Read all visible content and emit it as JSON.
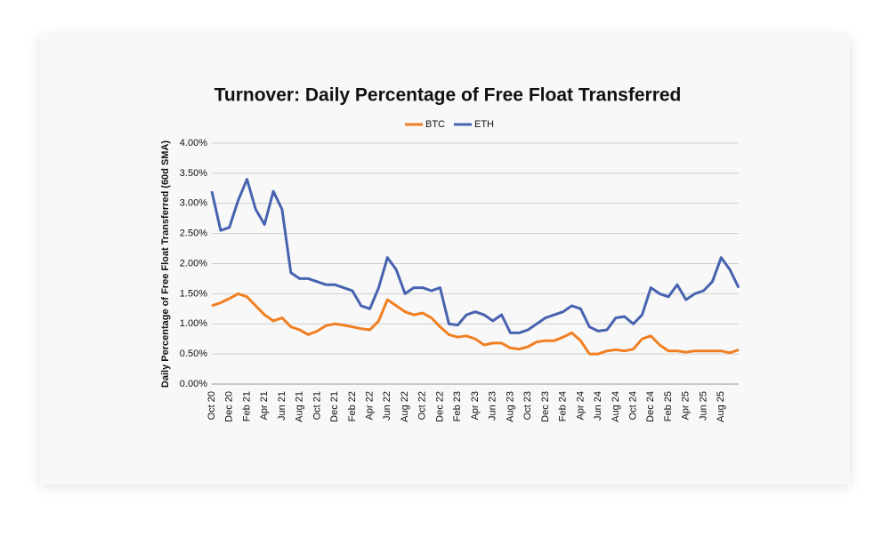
{
  "chart_data": {
    "type": "line",
    "title": "Turnover: Daily Percentage of Free Float Transferred",
    "y_label": "Daily Percentage of Free Float Transferred (60d SMA)",
    "categories": [
      "Oct 20",
      null,
      "Dec 20",
      null,
      "Feb 21",
      null,
      "Apr 21",
      null,
      "Jun 21",
      null,
      "Aug 21",
      null,
      "Oct 21",
      null,
      "Dec 21",
      null,
      "Feb 22",
      null,
      "Apr 22",
      null,
      "Jun 22",
      null,
      "Aug 22",
      null,
      "Oct 22",
      null,
      "Dec 22",
      null,
      "Feb 23",
      null,
      "Apr 23",
      null,
      "Jun 23",
      null,
      "Aug 23",
      null,
      "Oct 23",
      null,
      "Dec 23",
      null,
      "Feb 24",
      null,
      "Apr 24",
      null,
      "Jun 24",
      null,
      "Aug 24",
      null,
      "Oct 24",
      null,
      "Dec 24",
      null,
      "Feb 25",
      null,
      "Apr 25",
      null,
      "Jun 25",
      null,
      "Aug 25",
      null,
      null
    ],
    "series": [
      {
        "name": "BTC",
        "color": "#f07f22",
        "values": [
          1.3,
          1.35,
          1.42,
          1.5,
          1.45,
          1.3,
          1.15,
          1.05,
          1.1,
          0.95,
          0.9,
          0.82,
          0.88,
          0.97,
          1.0,
          0.98,
          0.95,
          0.92,
          0.9,
          1.05,
          1.4,
          1.3,
          1.2,
          1.15,
          1.18,
          1.1,
          0.95,
          0.82,
          0.78,
          0.8,
          0.75,
          0.65,
          0.68,
          0.68,
          0.6,
          0.58,
          0.62,
          0.7,
          0.72,
          0.72,
          0.78,
          0.85,
          0.72,
          0.5,
          0.5,
          0.55,
          0.57,
          0.55,
          0.58,
          0.75,
          0.8,
          0.65,
          0.55,
          0.55,
          0.53,
          0.55,
          0.55,
          0.55,
          0.55,
          0.52,
          0.57
        ]
      },
      {
        "name": "ETH",
        "color": "#4763b0",
        "values": [
          3.2,
          2.55,
          2.6,
          3.05,
          3.4,
          2.9,
          2.65,
          3.2,
          2.9,
          1.85,
          1.75,
          1.75,
          1.7,
          1.65,
          1.65,
          1.6,
          1.55,
          1.3,
          1.25,
          1.6,
          2.1,
          1.9,
          1.5,
          1.6,
          1.6,
          1.55,
          1.6,
          1.0,
          0.98,
          1.15,
          1.2,
          1.15,
          1.05,
          1.15,
          0.85,
          0.85,
          0.9,
          1.0,
          1.1,
          1.15,
          1.2,
          1.3,
          1.25,
          0.95,
          0.88,
          0.9,
          1.1,
          1.12,
          1.0,
          1.15,
          1.6,
          1.5,
          1.45,
          1.65,
          1.4,
          1.5,
          1.55,
          1.7,
          2.1,
          1.9,
          1.6
        ]
      }
    ],
    "ylim": [
      0,
      4
    ],
    "yticks": [
      {
        "value": 0,
        "label": "0.00%"
      },
      {
        "value": 0.5,
        "label": "0.50%"
      },
      {
        "value": 1,
        "label": "1.00%"
      },
      {
        "value": 1.5,
        "label": "1.50%"
      },
      {
        "value": 2,
        "label": "2.00%"
      },
      {
        "value": 2.5,
        "label": "2.50%"
      },
      {
        "value": 3,
        "label": "3.00%"
      },
      {
        "value": 3.5,
        "label": "3.50%"
      },
      {
        "value": 4,
        "label": "4.00%"
      }
    ],
    "grid": true,
    "legend": "top"
  }
}
